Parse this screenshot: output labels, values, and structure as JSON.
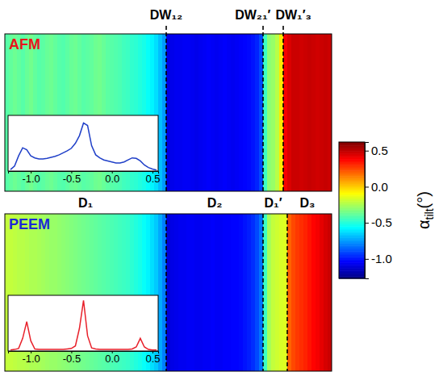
{
  "chart_data": {
    "type": "heatmap",
    "panels": [
      {
        "title": "AFM",
        "color": "#e8141c",
        "columns": [
          -0.4,
          -0.38,
          -0.36,
          -0.38,
          -0.4,
          -0.37,
          -0.35,
          -0.38,
          -0.4,
          -0.39,
          -0.37,
          -0.36,
          -0.38,
          -0.4,
          -0.41,
          -0.39,
          -0.37,
          -0.36,
          -0.38,
          -0.4,
          -0.39,
          -0.38,
          -0.36,
          -0.35,
          -0.37,
          -0.39,
          -0.4,
          -0.41,
          -0.42,
          -0.44,
          -0.45,
          -0.47,
          -0.48,
          -0.5,
          -0.52,
          -0.55,
          -0.58,
          -0.62,
          -0.68,
          -0.75,
          -1.08,
          -1.07,
          -1.06,
          -1.06,
          -1.05,
          -1.05,
          -1.06,
          -1.07,
          -1.06,
          -1.05,
          -1.04,
          -1.05,
          -1.06,
          -1.05,
          -1.04,
          -1.05,
          -1.06,
          -1.05,
          -1.04,
          -1.03,
          -1.02,
          -1.0,
          -0.97,
          -0.9,
          -0.45,
          -0.3,
          -0.28,
          -0.22,
          -0.05,
          0.4,
          0.45,
          0.48,
          0.48,
          0.47,
          0.48,
          0.49,
          0.48,
          0.47,
          0.48,
          0.49,
          0.48
        ],
        "walls": [
          {
            "label": "DW₁₂",
            "at": 40
          },
          {
            "label": "DW₂₁′",
            "at": 64
          },
          {
            "label": "DW₁′₃",
            "at": 69
          }
        ],
        "inset": {
          "type": "line",
          "color": "#1f3fc8",
          "x": [
            -1.25,
            -1.2,
            -1.15,
            -1.1,
            -1.05,
            -1.0,
            -0.95,
            -0.9,
            -0.85,
            -0.8,
            -0.75,
            -0.7,
            -0.65,
            -0.6,
            -0.55,
            -0.5,
            -0.45,
            -0.4,
            -0.35,
            -0.3,
            -0.25,
            -0.2,
            -0.15,
            -0.1,
            -0.05,
            0.0,
            0.05,
            0.1,
            0.15,
            0.2,
            0.25,
            0.3,
            0.35,
            0.4,
            0.45,
            0.5,
            0.55
          ],
          "values": [
            0.03,
            0.1,
            0.3,
            0.46,
            0.42,
            0.3,
            0.26,
            0.24,
            0.24,
            0.25,
            0.27,
            0.29,
            0.32,
            0.36,
            0.4,
            0.45,
            0.55,
            0.7,
            0.95,
            0.9,
            0.5,
            0.32,
            0.26,
            0.22,
            0.2,
            0.18,
            0.16,
            0.16,
            0.18,
            0.22,
            0.26,
            0.25,
            0.2,
            0.12,
            0.07,
            0.04,
            0.02
          ],
          "xlim": [
            -1.28,
            0.57
          ],
          "ylim": [
            0,
            1.1
          ],
          "xticks": [
            {
              "value": -1.0,
              "label": "-1.0"
            },
            -0.5,
            {
              "value": 0,
              "label": "0.0"
            },
            0.5
          ],
          "tick_labels": "x"
        }
      },
      {
        "title": "PEEM",
        "color": "#1c28d8",
        "columns": [
          -0.2,
          -0.2,
          -0.21,
          -0.22,
          -0.22,
          -0.23,
          -0.24,
          -0.24,
          -0.25,
          -0.26,
          -0.27,
          -0.28,
          -0.28,
          -0.29,
          -0.3,
          -0.31,
          -0.32,
          -0.33,
          -0.34,
          -0.35,
          -0.36,
          -0.37,
          -0.38,
          -0.39,
          -0.4,
          -0.41,
          -0.42,
          -0.43,
          -0.44,
          -0.45,
          -0.46,
          -0.48,
          -0.5,
          -0.52,
          -0.55,
          -0.58,
          -0.62,
          -0.66,
          -0.72,
          -0.8,
          -1.1,
          -1.08,
          -1.07,
          -1.06,
          -1.06,
          -1.05,
          -1.05,
          -1.06,
          -1.06,
          -1.05,
          -1.05,
          -1.04,
          -1.05,
          -1.05,
          -1.04,
          -1.04,
          -1.03,
          -1.03,
          -1.02,
          -1.0,
          -0.98,
          -0.95,
          -0.9,
          -0.82,
          -0.45,
          -0.25,
          -0.2,
          -0.18,
          -0.16,
          -0.15,
          0.2,
          0.25,
          0.28,
          0.3,
          0.32,
          0.35,
          0.38,
          0.4,
          0.43,
          0.46,
          0.48
        ],
        "walls": [
          40,
          64,
          70
        ],
        "inset": {
          "type": "line",
          "color": "#e8202a",
          "x": [
            -1.25,
            -1.2,
            -1.15,
            -1.1,
            -1.05,
            -1.0,
            -0.95,
            -0.9,
            -0.85,
            -0.8,
            -0.75,
            -0.7,
            -0.65,
            -0.6,
            -0.55,
            -0.5,
            -0.45,
            -0.4,
            -0.35,
            -0.3,
            -0.25,
            -0.2,
            -0.15,
            -0.1,
            -0.05,
            0.0,
            0.05,
            0.1,
            0.15,
            0.2,
            0.25,
            0.3,
            0.35,
            0.4,
            0.45,
            0.5,
            0.55
          ],
          "values": [
            0.02,
            0.03,
            0.05,
            0.25,
            0.58,
            0.2,
            0.04,
            0.03,
            0.03,
            0.03,
            0.03,
            0.03,
            0.03,
            0.03,
            0.04,
            0.05,
            0.1,
            0.45,
            1.0,
            0.3,
            0.06,
            0.04,
            0.03,
            0.03,
            0.03,
            0.03,
            0.03,
            0.03,
            0.03,
            0.03,
            0.04,
            0.08,
            0.25,
            0.08,
            0.03,
            0.02,
            0.02
          ],
          "xlim": [
            -1.28,
            0.57
          ],
          "ylim": [
            0,
            1.1
          ],
          "xticks": [
            {
              "value": -1.0,
              "label": "-1.0"
            },
            -0.5,
            {
              "value": 0,
              "label": "0.0"
            },
            0.5
          ],
          "tick_labels": "x"
        }
      }
    ],
    "domain_labels": [
      "D₁",
      "D₂",
      "D₁′",
      "D₃"
    ],
    "colorbar": {
      "label": "αtilt(°)",
      "range": [
        -1.27,
        0.62
      ],
      "ticks": [
        0.5,
        {
          "value": 0,
          "label": "0.0"
        },
        -0.5,
        {
          "value": -1.0,
          "label": "-1.0"
        }
      ]
    }
  }
}
